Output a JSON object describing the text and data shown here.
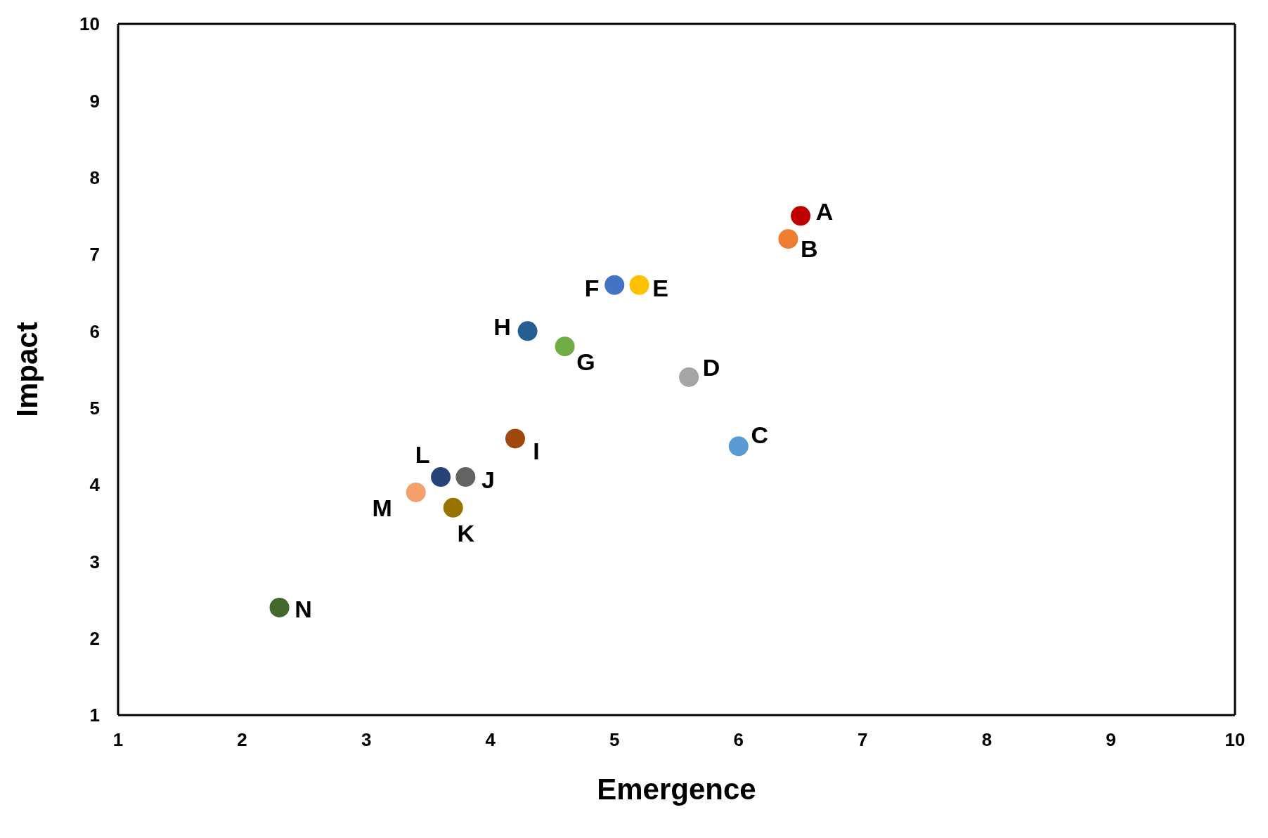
{
  "chart_data": {
    "type": "scatter",
    "xlabel": "Emergence",
    "ylabel": "Impact",
    "xlim": [
      1,
      10
    ],
    "ylim": [
      1,
      10
    ],
    "xticks": [
      1,
      2,
      3,
      4,
      5,
      6,
      7,
      8,
      9,
      10
    ],
    "yticks": [
      1,
      2,
      3,
      4,
      5,
      6,
      7,
      8,
      9,
      10
    ],
    "legend": false,
    "marker": "circle",
    "series": [
      {
        "name": "A",
        "color": "#c00000",
        "x": [
          6.5
        ],
        "values": [
          7.5
        ]
      },
      {
        "name": "B",
        "color": "#ed7d31",
        "x": [
          6.4
        ],
        "values": [
          7.2
        ]
      },
      {
        "name": "C",
        "color": "#5b9bd5",
        "x": [
          6.0
        ],
        "values": [
          4.5
        ]
      },
      {
        "name": "D",
        "color": "#a5a5a5",
        "x": [
          5.6
        ],
        "values": [
          5.4
        ]
      },
      {
        "name": "E",
        "color": "#ffc000",
        "x": [
          5.2
        ],
        "values": [
          6.6
        ]
      },
      {
        "name": "F",
        "color": "#4472c4",
        "x": [
          5.0
        ],
        "values": [
          6.6
        ]
      },
      {
        "name": "G",
        "color": "#70ad47",
        "x": [
          4.6
        ],
        "values": [
          5.8
        ]
      },
      {
        "name": "H",
        "color": "#255e91",
        "x": [
          4.3
        ],
        "values": [
          6.0
        ]
      },
      {
        "name": "I",
        "color": "#9e480e",
        "x": [
          4.2
        ],
        "values": [
          4.6
        ]
      },
      {
        "name": "J",
        "color": "#636363",
        "x": [
          3.8
        ],
        "values": [
          4.1
        ]
      },
      {
        "name": "K",
        "color": "#997300",
        "x": [
          3.7
        ],
        "values": [
          3.7
        ]
      },
      {
        "name": "L",
        "color": "#264478",
        "x": [
          3.6
        ],
        "values": [
          4.1
        ]
      },
      {
        "name": "M",
        "color": "#f4a06a",
        "x": [
          3.4
        ],
        "values": [
          3.9
        ]
      },
      {
        "name": "N",
        "color": "#43682b",
        "x": [
          2.3
        ],
        "values": [
          2.4
        ]
      }
    ]
  }
}
